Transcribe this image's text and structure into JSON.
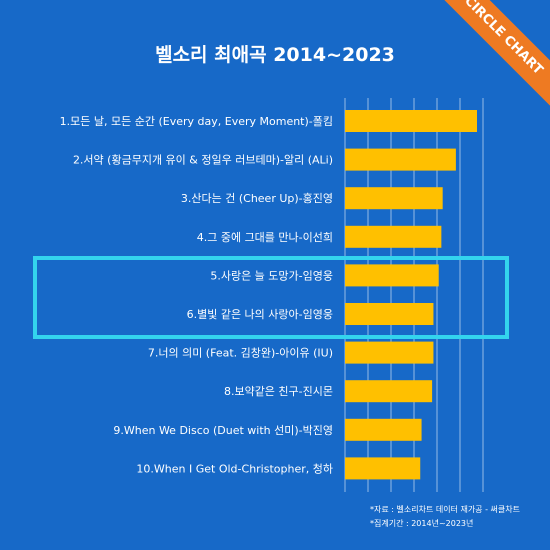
{
  "header": {
    "title": "벨소리 최애곡 2014~2023",
    "badge": "CIRCLE CHART"
  },
  "footer": {
    "source_line": "*자료 : 벨소리차트 데이터 재가공 - 써클차트",
    "period_line": "*집계기간 : 2014년~2023년"
  },
  "colors": {
    "background": "#1769c8",
    "bar": "#ffc000",
    "highlight": "#33d4ee",
    "badge": "#ee7a22"
  },
  "chart_data": {
    "type": "bar",
    "orientation": "horizontal",
    "title": "벨소리 최애곡 2014~2023",
    "categories": [
      "1.모든 날, 모든 순간 (Every day, Every Moment)-폴킴",
      "2.서약 (황금무지개 유이 & 정일우 러브테마)-알리 (ALi)",
      "3.산다는 건 (Cheer Up)-홍진영",
      "4.그 중에 그대를 만나-이선희",
      "5.사랑은 늘 도망가-임영웅",
      "6.별빛 같은 나의 사랑아-임영웅",
      "7.너의 의미 (Feat. 김창완)-아이유 (IU)",
      "8.보약같은 친구-진시몬",
      "9.When We Disco (Duet with 선미)-박진영",
      "10.When I Get Old-Christopher, 청하"
    ],
    "values": [
      100,
      84,
      74,
      73,
      71,
      67,
      67,
      66,
      58,
      57
    ],
    "xlim": [
      0,
      100
    ],
    "grid": true,
    "legend": "none",
    "highlighted": [
      4,
      5
    ]
  }
}
